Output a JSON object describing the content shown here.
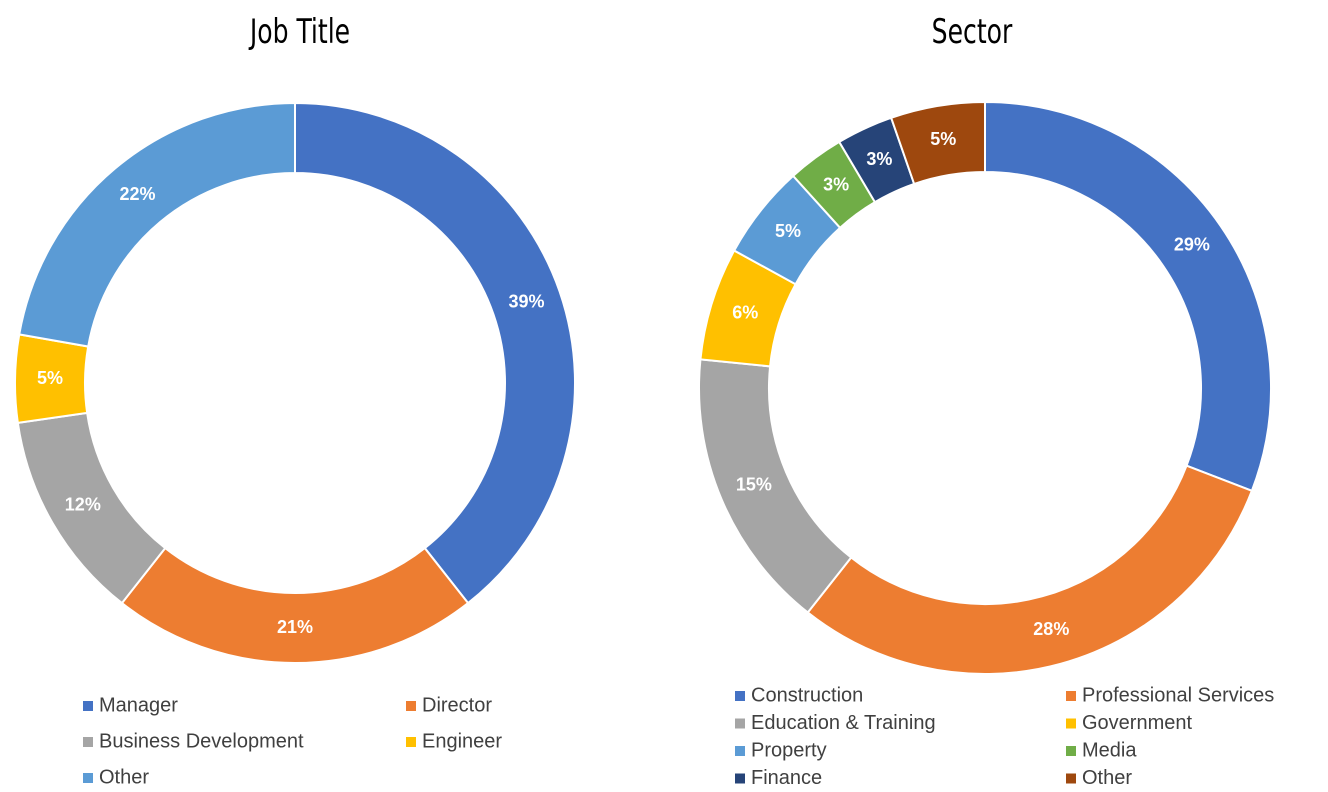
{
  "chart_data": [
    {
      "type": "donut",
      "title": "Job Title",
      "categories": [
        "Manager",
        "Director",
        "Business Development",
        "Engineer",
        "Other"
      ],
      "values": [
        39,
        21,
        12,
        5,
        22
      ],
      "value_labels": [
        "39%",
        "21%",
        "12%",
        "5%",
        "22%"
      ],
      "colors": [
        "#4472c4",
        "#ed7d31",
        "#a5a5a5",
        "#ffc000",
        "#5b9bd5"
      ],
      "legend": "bottom"
    },
    {
      "type": "donut",
      "title": "Sector",
      "categories": [
        "Construction",
        "Professional Services",
        "Education & Training",
        "Government",
        "Property",
        "Media",
        "Finance",
        "Other"
      ],
      "values": [
        29,
        28,
        15,
        6,
        5,
        3,
        3,
        5
      ],
      "value_labels": [
        "29%",
        "28%",
        "15%",
        "6%",
        "5%",
        "3%",
        "3%",
        "5%"
      ],
      "colors": [
        "#4472c4",
        "#ed7d31",
        "#a5a5a5",
        "#ffc000",
        "#5b9bd5",
        "#70ad47",
        "#264478",
        "#9e480e"
      ],
      "legend": "bottom"
    }
  ]
}
